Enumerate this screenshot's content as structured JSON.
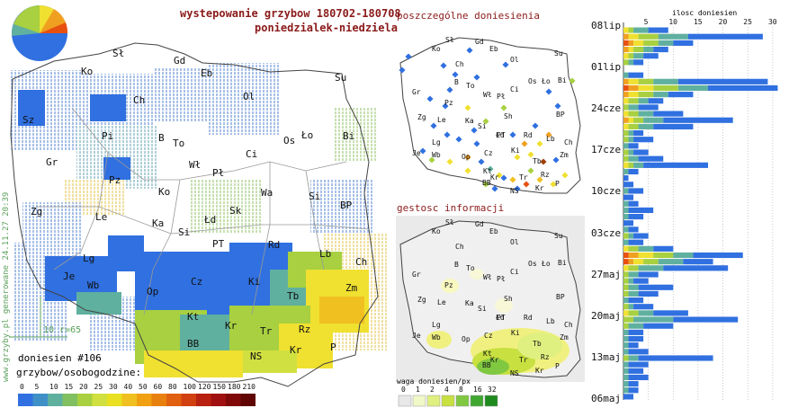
{
  "header": {
    "title": "wystepowanie grzybow 180702-180708",
    "subtitle": "poniedzialek-niedziela"
  },
  "panels": {
    "reports_title": "poszczególne doniesienia",
    "density_title": "gestosc informacji",
    "density_legend_title": "waga doniesien/px",
    "density_legend_values": [
      "0",
      "1",
      "2",
      "4",
      "8",
      "16",
      "32"
    ],
    "density_legend_colors": [
      "#e8e8e8",
      "#f0f8c8",
      "#e0f080",
      "#c8e040",
      "#80c840",
      "#40a830",
      "#1e8a1e"
    ]
  },
  "main_map": {
    "report_count": "doniesien #106",
    "scale_label": "grzybow/osobogodzine:",
    "scale_values": [
      "0",
      "5",
      "10",
      "15",
      "20",
      "25",
      "30",
      "40",
      "50",
      "60",
      "80",
      "100",
      "120",
      "150",
      "180",
      "210"
    ],
    "scale_colors": [
      "#3070e0",
      "#4090c8",
      "#60b0a0",
      "#80c060",
      "#a8d040",
      "#d0e040",
      "#e8e020",
      "#f0c020",
      "#f0a010",
      "#e88010",
      "#e06010",
      "#d04010",
      "#b82010",
      "#a01010",
      "#800808",
      "#600404"
    ],
    "grid_note": "10 r=65",
    "vertical_credit": "www.grzyby.pl generowane 24.11.27 20:39",
    "cities": [
      "Sł",
      "Gd",
      "Ko",
      "Eb",
      "Su",
      "Ch",
      "Ol",
      "Sz",
      "Pi",
      "B",
      "To",
      "Gr",
      "Pz",
      "Wł",
      "Pł",
      "Os",
      "Ło",
      "Bi",
      "Ci",
      "Ko",
      "Wa",
      "Si",
      "BP",
      "Zg",
      "Le",
      "Ka",
      "Łd",
      "Sk",
      "Si",
      "PT",
      "Rd",
      "Lb",
      "Ch",
      "Lg",
      "Wb",
      "Je",
      "Op",
      "Cz",
      "Ki",
      "Tb",
      "Zm",
      "Kt",
      "Kr",
      "Tr",
      "Rz",
      "BB",
      "NS",
      "Kr",
      "P"
    ]
  },
  "small_map_cities": [
    "Sł",
    "Gd",
    "Ko",
    "Eb",
    "Su",
    "Ch",
    "Ol",
    "Os",
    "Bi",
    "B",
    "To",
    "Gr",
    "Wł",
    "Pł",
    "Ci",
    "Pz",
    "Ło",
    "Ka",
    "Si",
    "Sh",
    "BP",
    "Zg",
    "Le",
    "Łd",
    "PT",
    "Rd",
    "Lb",
    "Lg",
    "Wb",
    "Ch",
    "Op",
    "Ki",
    "Zm",
    "Cz",
    "Je",
    "Kt",
    "Tb",
    "Kr",
    "Tr",
    "Rz",
    "BB",
    "NS",
    "Kr",
    "P"
  ],
  "chart_data": {
    "type": "bar",
    "orientation": "horizontal",
    "title": "ilosc doniesien",
    "xlim": [
      0,
      32
    ],
    "xticks": [
      5,
      10,
      15,
      20,
      25,
      30
    ],
    "date_labels": [
      "08lip",
      "01lip",
      "24cze",
      "17cze",
      "10cze",
      "03cze",
      "27maj",
      "20maj",
      "13maj",
      "06maj"
    ],
    "series_colors": [
      "#e85010",
      "#f0a020",
      "#f0e030",
      "#a8d040",
      "#60b0a0",
      "#3070e0"
    ],
    "rows": [
      [
        0,
        0,
        1,
        1,
        3,
        4
      ],
      [
        0,
        1,
        2,
        4,
        6,
        15
      ],
      [
        1,
        1,
        2,
        3,
        3,
        4
      ],
      [
        0,
        1,
        1,
        2,
        2,
        3
      ],
      [
        0,
        0,
        1,
        1,
        2,
        3
      ],
      [
        0,
        0,
        0,
        1,
        1,
        2
      ],
      [
        0,
        0,
        0,
        0,
        0,
        0
      ],
      [
        0,
        0,
        0,
        0,
        1,
        3
      ],
      [
        0,
        1,
        2,
        3,
        5,
        18
      ],
      [
        1,
        2,
        3,
        5,
        6,
        14
      ],
      [
        0,
        1,
        2,
        3,
        3,
        5
      ],
      [
        0,
        0,
        1,
        2,
        2,
        3
      ],
      [
        0,
        0,
        0,
        1,
        2,
        4
      ],
      [
        0,
        0,
        1,
        2,
        3,
        6
      ],
      [
        0,
        1,
        1,
        2,
        4,
        14
      ],
      [
        0,
        0,
        1,
        2,
        3,
        8
      ],
      [
        0,
        0,
        0,
        1,
        1,
        2
      ],
      [
        0,
        0,
        0,
        1,
        1,
        4
      ],
      [
        0,
        0,
        0,
        0,
        1,
        2
      ],
      [
        0,
        0,
        0,
        1,
        1,
        3
      ],
      [
        0,
        0,
        0,
        1,
        2,
        5
      ],
      [
        0,
        0,
        1,
        1,
        2,
        13
      ],
      [
        0,
        0,
        0,
        0,
        1,
        2
      ],
      [
        0,
        0,
        0,
        0,
        0,
        1
      ],
      [
        0,
        0,
        0,
        0,
        0,
        2
      ],
      [
        0,
        0,
        0,
        0,
        1,
        3
      ],
      [
        0,
        0,
        0,
        0,
        0,
        2
      ],
      [
        0,
        0,
        0,
        0,
        1,
        2
      ],
      [
        0,
        0,
        0,
        0,
        1,
        5
      ],
      [
        0,
        0,
        0,
        0,
        1,
        3
      ],
      [
        0,
        0,
        0,
        0,
        0,
        2
      ],
      [
        0,
        0,
        0,
        0,
        1,
        2
      ],
      [
        0,
        0,
        0,
        1,
        1,
        3
      ],
      [
        0,
        0,
        0,
        0,
        1,
        3
      ],
      [
        0,
        0,
        1,
        2,
        3,
        4
      ],
      [
        1,
        2,
        3,
        4,
        4,
        10
      ],
      [
        1,
        1,
        2,
        3,
        5,
        6
      ],
      [
        0,
        0,
        1,
        2,
        5,
        13
      ],
      [
        0,
        0,
        0,
        1,
        2,
        4
      ],
      [
        0,
        0,
        0,
        1,
        1,
        3
      ],
      [
        0,
        0,
        0,
        1,
        2,
        7
      ],
      [
        0,
        0,
        0,
        1,
        2,
        4
      ],
      [
        0,
        0,
        0,
        0,
        1,
        3
      ],
      [
        0,
        0,
        0,
        1,
        1,
        4
      ],
      [
        0,
        0,
        1,
        2,
        3,
        7
      ],
      [
        0,
        0,
        0,
        2,
        8,
        13
      ],
      [
        0,
        0,
        0,
        1,
        3,
        6
      ],
      [
        0,
        0,
        0,
        0,
        1,
        3
      ],
      [
        0,
        0,
        0,
        0,
        1,
        3
      ],
      [
        0,
        0,
        0,
        0,
        1,
        2
      ],
      [
        0,
        0,
        0,
        0,
        1,
        4
      ],
      [
        0,
        0,
        0,
        1,
        2,
        15
      ],
      [
        0,
        0,
        0,
        0,
        1,
        4
      ],
      [
        0,
        0,
        0,
        0,
        1,
        3
      ],
      [
        0,
        0,
        0,
        0,
        1,
        4
      ],
      [
        0,
        0,
        0,
        0,
        1,
        2
      ],
      [
        0,
        0,
        0,
        0,
        1,
        2
      ],
      [
        0,
        0,
        0,
        0,
        0,
        2
      ]
    ]
  }
}
